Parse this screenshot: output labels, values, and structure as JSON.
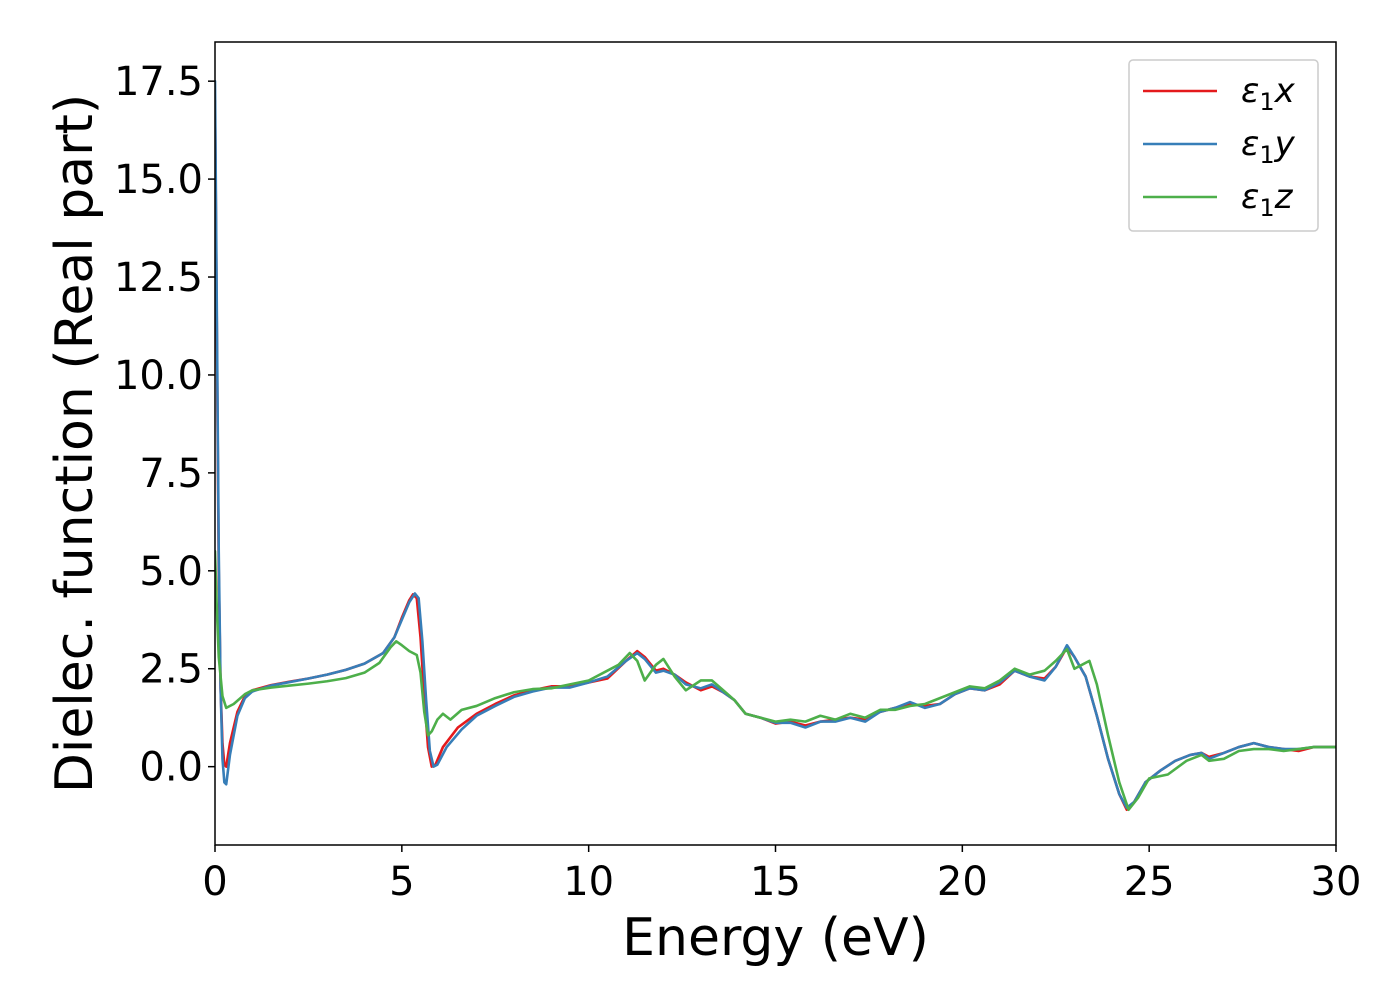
{
  "chart_data": {
    "type": "line",
    "title": "",
    "xlabel": "Energy (eV)",
    "ylabel": "Dielec. function (Real part)",
    "xlim": [
      0,
      30
    ],
    "ylim": [
      -2.0,
      18.5
    ],
    "xticks": [
      0,
      5,
      10,
      15,
      20,
      25,
      30
    ],
    "xtick_labels": [
      "0",
      "5",
      "10",
      "15",
      "20",
      "25",
      "30"
    ],
    "yticks": [
      0,
      2.5,
      5,
      7.5,
      10,
      12.5,
      15,
      17.5
    ],
    "ytick_labels": [
      "0.0",
      "2.5",
      "5.0",
      "7.5",
      "10.0",
      "12.5",
      "15.0",
      "17.5"
    ],
    "grid": false,
    "legend_position": "top-right",
    "series": [
      {
        "name": "ε₁x",
        "legend_main": "ε",
        "legend_sub": "1",
        "legend_tail": "x",
        "color": "#e41a1c",
        "points": [
          [
            0.0,
            17.0
          ],
          [
            0.05,
            11.0
          ],
          [
            0.1,
            5.0
          ],
          [
            0.15,
            2.0
          ],
          [
            0.2,
            0.6
          ],
          [
            0.25,
            0.05
          ],
          [
            0.3,
            0.0
          ],
          [
            0.4,
            0.6
          ],
          [
            0.6,
            1.4
          ],
          [
            0.8,
            1.8
          ],
          [
            1.0,
            1.95
          ],
          [
            1.5,
            2.08
          ],
          [
            2.0,
            2.17
          ],
          [
            2.5,
            2.25
          ],
          [
            3.0,
            2.35
          ],
          [
            3.5,
            2.47
          ],
          [
            4.0,
            2.63
          ],
          [
            4.5,
            2.9
          ],
          [
            4.8,
            3.3
          ],
          [
            5.0,
            3.8
          ],
          [
            5.2,
            4.25
          ],
          [
            5.3,
            4.4
          ],
          [
            5.4,
            4.3
          ],
          [
            5.5,
            3.3
          ],
          [
            5.6,
            1.8
          ],
          [
            5.7,
            0.5
          ],
          [
            5.8,
            0.0
          ],
          [
            5.9,
            0.05
          ],
          [
            6.1,
            0.5
          ],
          [
            6.5,
            1.0
          ],
          [
            7.0,
            1.35
          ],
          [
            7.5,
            1.6
          ],
          [
            8.0,
            1.82
          ],
          [
            8.5,
            1.95
          ],
          [
            9.0,
            2.05
          ],
          [
            9.5,
            2.05
          ],
          [
            10.0,
            2.15
          ],
          [
            10.5,
            2.25
          ],
          [
            11.0,
            2.7
          ],
          [
            11.3,
            2.95
          ],
          [
            11.5,
            2.8
          ],
          [
            11.8,
            2.45
          ],
          [
            12.0,
            2.5
          ],
          [
            12.3,
            2.35
          ],
          [
            12.6,
            2.15
          ],
          [
            13.0,
            1.95
          ],
          [
            13.3,
            2.05
          ],
          [
            13.6,
            1.9
          ],
          [
            13.9,
            1.7
          ],
          [
            14.2,
            1.35
          ],
          [
            14.6,
            1.25
          ],
          [
            15.0,
            1.1
          ],
          [
            15.4,
            1.15
          ],
          [
            15.8,
            1.05
          ],
          [
            16.2,
            1.15
          ],
          [
            16.6,
            1.2
          ],
          [
            17.0,
            1.25
          ],
          [
            17.4,
            1.2
          ],
          [
            17.8,
            1.4
          ],
          [
            18.2,
            1.5
          ],
          [
            18.6,
            1.6
          ],
          [
            19.0,
            1.55
          ],
          [
            19.4,
            1.6
          ],
          [
            19.8,
            1.85
          ],
          [
            20.2,
            2.0
          ],
          [
            20.6,
            1.95
          ],
          [
            21.0,
            2.1
          ],
          [
            21.4,
            2.45
          ],
          [
            21.8,
            2.3
          ],
          [
            22.2,
            2.25
          ],
          [
            22.5,
            2.55
          ],
          [
            22.8,
            3.05
          ],
          [
            23.0,
            2.8
          ],
          [
            23.3,
            2.3
          ],
          [
            23.6,
            1.3
          ],
          [
            23.9,
            0.2
          ],
          [
            24.2,
            -0.7
          ],
          [
            24.4,
            -1.1
          ],
          [
            24.6,
            -0.9
          ],
          [
            24.9,
            -0.4
          ],
          [
            25.3,
            -0.1
          ],
          [
            25.7,
            0.15
          ],
          [
            26.1,
            0.3
          ],
          [
            26.4,
            0.35
          ],
          [
            26.6,
            0.25
          ],
          [
            27.0,
            0.35
          ],
          [
            27.4,
            0.5
          ],
          [
            27.8,
            0.6
          ],
          [
            28.2,
            0.5
          ],
          [
            28.6,
            0.45
          ],
          [
            29.0,
            0.4
          ],
          [
            29.4,
            0.5
          ],
          [
            30.0,
            0.5
          ]
        ]
      },
      {
        "name": "ε₁y",
        "legend_main": "ε",
        "legend_sub": "1",
        "legend_tail": "y",
        "color": "#377eb8",
        "points": [
          [
            0.0,
            17.5
          ],
          [
            0.05,
            11.5
          ],
          [
            0.1,
            5.5
          ],
          [
            0.15,
            2.0
          ],
          [
            0.2,
            0.2
          ],
          [
            0.25,
            -0.4
          ],
          [
            0.3,
            -0.45
          ],
          [
            0.4,
            0.3
          ],
          [
            0.6,
            1.3
          ],
          [
            0.8,
            1.75
          ],
          [
            1.0,
            1.92
          ],
          [
            1.5,
            2.07
          ],
          [
            2.0,
            2.16
          ],
          [
            2.5,
            2.25
          ],
          [
            3.0,
            2.35
          ],
          [
            3.5,
            2.47
          ],
          [
            4.0,
            2.63
          ],
          [
            4.5,
            2.9
          ],
          [
            4.8,
            3.3
          ],
          [
            5.0,
            3.75
          ],
          [
            5.2,
            4.2
          ],
          [
            5.35,
            4.42
          ],
          [
            5.45,
            4.3
          ],
          [
            5.55,
            3.2
          ],
          [
            5.65,
            1.7
          ],
          [
            5.75,
            0.4
          ],
          [
            5.85,
            0.0
          ],
          [
            5.95,
            0.05
          ],
          [
            6.2,
            0.5
          ],
          [
            6.6,
            0.95
          ],
          [
            7.0,
            1.3
          ],
          [
            7.5,
            1.55
          ],
          [
            8.0,
            1.78
          ],
          [
            8.5,
            1.92
          ],
          [
            9.0,
            2.02
          ],
          [
            9.5,
            2.02
          ],
          [
            10.0,
            2.15
          ],
          [
            10.5,
            2.3
          ],
          [
            11.0,
            2.7
          ],
          [
            11.3,
            2.9
          ],
          [
            11.5,
            2.75
          ],
          [
            11.8,
            2.4
          ],
          [
            12.0,
            2.45
          ],
          [
            12.3,
            2.35
          ],
          [
            12.6,
            2.1
          ],
          [
            13.0,
            2.0
          ],
          [
            13.3,
            2.1
          ],
          [
            13.6,
            1.9
          ],
          [
            13.9,
            1.7
          ],
          [
            14.2,
            1.35
          ],
          [
            14.6,
            1.25
          ],
          [
            15.0,
            1.12
          ],
          [
            15.4,
            1.12
          ],
          [
            15.8,
            1.0
          ],
          [
            16.2,
            1.15
          ],
          [
            16.6,
            1.15
          ],
          [
            17.0,
            1.25
          ],
          [
            17.4,
            1.15
          ],
          [
            17.8,
            1.4
          ],
          [
            18.2,
            1.5
          ],
          [
            18.6,
            1.65
          ],
          [
            19.0,
            1.5
          ],
          [
            19.4,
            1.6
          ],
          [
            19.8,
            1.85
          ],
          [
            20.2,
            2.0
          ],
          [
            20.6,
            1.95
          ],
          [
            21.0,
            2.15
          ],
          [
            21.4,
            2.45
          ],
          [
            21.8,
            2.3
          ],
          [
            22.2,
            2.2
          ],
          [
            22.5,
            2.55
          ],
          [
            22.8,
            3.1
          ],
          [
            23.0,
            2.8
          ],
          [
            23.3,
            2.3
          ],
          [
            23.6,
            1.3
          ],
          [
            23.9,
            0.2
          ],
          [
            24.2,
            -0.7
          ],
          [
            24.4,
            -1.05
          ],
          [
            24.6,
            -0.9
          ],
          [
            24.9,
            -0.4
          ],
          [
            25.3,
            -0.1
          ],
          [
            25.7,
            0.15
          ],
          [
            26.1,
            0.3
          ],
          [
            26.4,
            0.35
          ],
          [
            26.6,
            0.2
          ],
          [
            27.0,
            0.35
          ],
          [
            27.4,
            0.5
          ],
          [
            27.8,
            0.6
          ],
          [
            28.2,
            0.5
          ],
          [
            28.6,
            0.45
          ],
          [
            29.0,
            0.45
          ],
          [
            29.4,
            0.5
          ],
          [
            30.0,
            0.5
          ]
        ]
      },
      {
        "name": "ε₁z",
        "legend_main": "ε",
        "legend_sub": "1",
        "legend_tail": "z",
        "color": "#4daf4a",
        "points": [
          [
            0.0,
            5.5
          ],
          [
            0.05,
            4.0
          ],
          [
            0.1,
            2.8
          ],
          [
            0.2,
            1.8
          ],
          [
            0.3,
            1.5
          ],
          [
            0.5,
            1.6
          ],
          [
            0.8,
            1.85
          ],
          [
            1.0,
            1.95
          ],
          [
            1.5,
            2.02
          ],
          [
            2.0,
            2.07
          ],
          [
            2.5,
            2.12
          ],
          [
            3.0,
            2.18
          ],
          [
            3.5,
            2.26
          ],
          [
            4.0,
            2.4
          ],
          [
            4.4,
            2.65
          ],
          [
            4.7,
            3.05
          ],
          [
            4.85,
            3.2
          ],
          [
            5.0,
            3.1
          ],
          [
            5.2,
            2.95
          ],
          [
            5.4,
            2.85
          ],
          [
            5.5,
            2.4
          ],
          [
            5.6,
            1.4
          ],
          [
            5.7,
            0.8
          ],
          [
            5.8,
            0.9
          ],
          [
            5.95,
            1.2
          ],
          [
            6.1,
            1.35
          ],
          [
            6.3,
            1.2
          ],
          [
            6.6,
            1.45
          ],
          [
            7.0,
            1.55
          ],
          [
            7.5,
            1.75
          ],
          [
            8.0,
            1.9
          ],
          [
            8.5,
            1.98
          ],
          [
            9.0,
            2.0
          ],
          [
            9.5,
            2.1
          ],
          [
            10.0,
            2.2
          ],
          [
            10.5,
            2.45
          ],
          [
            10.8,
            2.6
          ],
          [
            11.1,
            2.9
          ],
          [
            11.3,
            2.7
          ],
          [
            11.5,
            2.2
          ],
          [
            11.8,
            2.6
          ],
          [
            12.0,
            2.75
          ],
          [
            12.3,
            2.3
          ],
          [
            12.6,
            1.95
          ],
          [
            13.0,
            2.2
          ],
          [
            13.3,
            2.2
          ],
          [
            13.6,
            1.95
          ],
          [
            13.9,
            1.7
          ],
          [
            14.2,
            1.35
          ],
          [
            14.6,
            1.25
          ],
          [
            15.0,
            1.15
          ],
          [
            15.4,
            1.2
          ],
          [
            15.8,
            1.15
          ],
          [
            16.2,
            1.3
          ],
          [
            16.6,
            1.2
          ],
          [
            17.0,
            1.35
          ],
          [
            17.4,
            1.25
          ],
          [
            17.8,
            1.45
          ],
          [
            18.2,
            1.45
          ],
          [
            18.6,
            1.55
          ],
          [
            19.0,
            1.6
          ],
          [
            19.4,
            1.75
          ],
          [
            19.8,
            1.9
          ],
          [
            20.2,
            2.05
          ],
          [
            20.6,
            2.0
          ],
          [
            21.0,
            2.2
          ],
          [
            21.4,
            2.5
          ],
          [
            21.8,
            2.35
          ],
          [
            22.2,
            2.45
          ],
          [
            22.5,
            2.7
          ],
          [
            22.8,
            3.0
          ],
          [
            23.0,
            2.5
          ],
          [
            23.2,
            2.6
          ],
          [
            23.4,
            2.7
          ],
          [
            23.6,
            2.1
          ],
          [
            23.9,
            0.8
          ],
          [
            24.2,
            -0.4
          ],
          [
            24.45,
            -1.1
          ],
          [
            24.7,
            -0.8
          ],
          [
            25.0,
            -0.3
          ],
          [
            25.5,
            -0.2
          ],
          [
            26.0,
            0.15
          ],
          [
            26.4,
            0.3
          ],
          [
            26.6,
            0.15
          ],
          [
            27.0,
            0.2
          ],
          [
            27.4,
            0.4
          ],
          [
            27.8,
            0.45
          ],
          [
            28.2,
            0.45
          ],
          [
            28.6,
            0.4
          ],
          [
            29.0,
            0.45
          ],
          [
            29.4,
            0.5
          ],
          [
            30.0,
            0.5
          ]
        ]
      }
    ]
  }
}
